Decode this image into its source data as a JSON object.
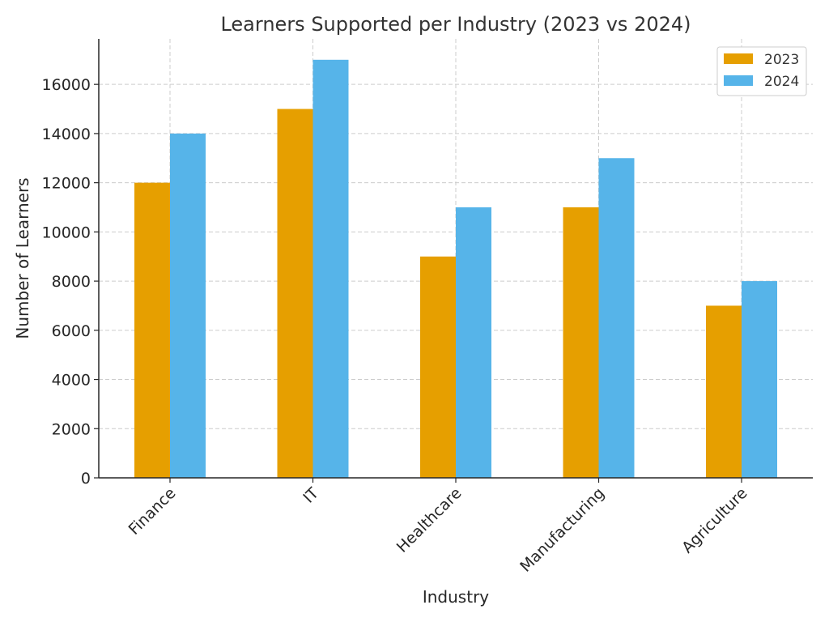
{
  "chart_data": {
    "type": "bar",
    "title": "Learners Supported per Industry (2023 vs 2024)",
    "xlabel": "Industry",
    "ylabel": "Number of Learners",
    "categories": [
      "Finance",
      "IT",
      "Healthcare",
      "Manufacturing",
      "Agriculture"
    ],
    "series": [
      {
        "name": "2023",
        "values": [
          12000,
          15000,
          9000,
          11000,
          7000
        ],
        "color": "#E69F00"
      },
      {
        "name": "2024",
        "values": [
          14000,
          17000,
          11000,
          13000,
          8000
        ],
        "color": "#56B4E9"
      }
    ],
    "ylim": [
      0,
      17850
    ],
    "yticks": [
      0,
      2000,
      4000,
      6000,
      8000,
      10000,
      12000,
      14000,
      16000
    ],
    "grid": true,
    "legend_position": "top-right"
  }
}
